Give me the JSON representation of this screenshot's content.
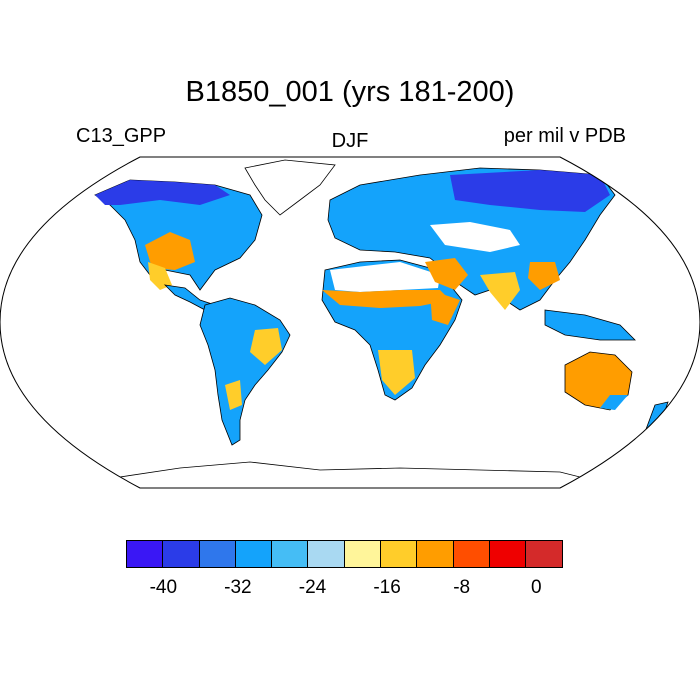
{
  "title": "B1850_001 (yrs 181-200)",
  "left_label": "C13_GPP",
  "center_label": "DJF",
  "right_label": "per mil v PDB",
  "colorbar": {
    "colors": [
      "#3a17f5",
      "#2b3ce8",
      "#2f77ec",
      "#14a3fb",
      "#45bdf5",
      "#a9d9f2",
      "#fff59a",
      "#ffcd2a",
      "#ff9d00",
      "#ff4e00",
      "#ef0000",
      "#d42a2a"
    ],
    "tick_labels": [
      "-40",
      "-32",
      "-24",
      "-16",
      "-8",
      "0"
    ]
  },
  "land_colors": {
    "dominant": "#14a3fb",
    "arctic": "#2b3ce8",
    "dry": "#ffcd2a",
    "semi_arid": "#ff9d00",
    "hot": "#ff4e00",
    "moist": "#45bdf5",
    "no_data": "#ffffff"
  }
}
